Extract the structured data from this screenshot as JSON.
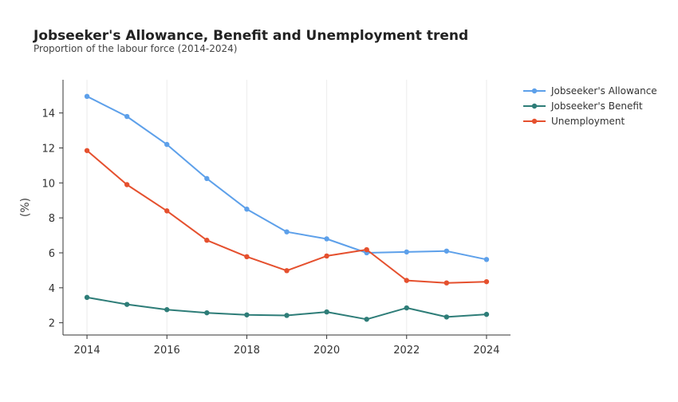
{
  "chart_data": {
    "type": "line",
    "title": "Jobseeker's Allowance, Benefit and Unemployment trend",
    "subtitle": "Proportion of the labour force (2014-2024)",
    "xlabel": "",
    "ylabel": "(%)",
    "x": [
      2014,
      2015,
      2016,
      2017,
      2018,
      2019,
      2020,
      2021,
      2022,
      2023,
      2024
    ],
    "xlim": [
      2013.4,
      2024.6
    ],
    "ylim": [
      1.3,
      15.9
    ],
    "xticks": [
      2014,
      2016,
      2018,
      2020,
      2022,
      2024
    ],
    "yticks": [
      2,
      4,
      6,
      8,
      10,
      12,
      14
    ],
    "grid": "vertical",
    "legend_position": "top-right",
    "series": [
      {
        "name": "Jobseeker's Allowance",
        "color": "#5DA0EA",
        "values": [
          14.95,
          13.8,
          12.2,
          10.25,
          8.5,
          7.2,
          6.8,
          6.0,
          6.05,
          6.1,
          5.62
        ]
      },
      {
        "name": "Jobseeker's Benefit",
        "color": "#2E7D78",
        "values": [
          3.45,
          3.05,
          2.75,
          2.57,
          2.45,
          2.42,
          2.62,
          2.2,
          2.85,
          2.33,
          2.48
        ]
      },
      {
        "name": "Unemployment",
        "color": "#E5502E",
        "values": [
          11.85,
          9.9,
          8.4,
          6.72,
          5.78,
          4.98,
          5.82,
          6.18,
          4.42,
          4.28,
          4.35
        ]
      }
    ]
  }
}
